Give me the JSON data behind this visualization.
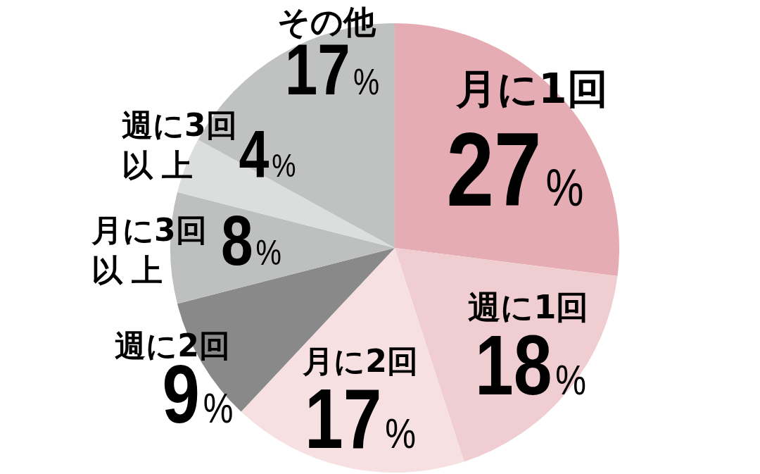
{
  "chart_data": {
    "type": "pie",
    "categories": [
      "月に1回",
      "週に1回",
      "月に2回",
      "週に2回",
      "月に3回以上",
      "週に3回以上",
      "その他"
    ],
    "values": [
      27,
      18,
      17,
      9,
      8,
      4,
      17
    ],
    "value_labels": [
      "27%",
      "18%",
      "17%",
      "9%",
      "8%",
      "4%",
      "17%"
    ],
    "colors": [
      "#e5acb3",
      "#efcdd0",
      "#f6e0e2",
      "#898989",
      "#bebfbf",
      "#dcdddd",
      "#c0c1c1"
    ]
  }
}
